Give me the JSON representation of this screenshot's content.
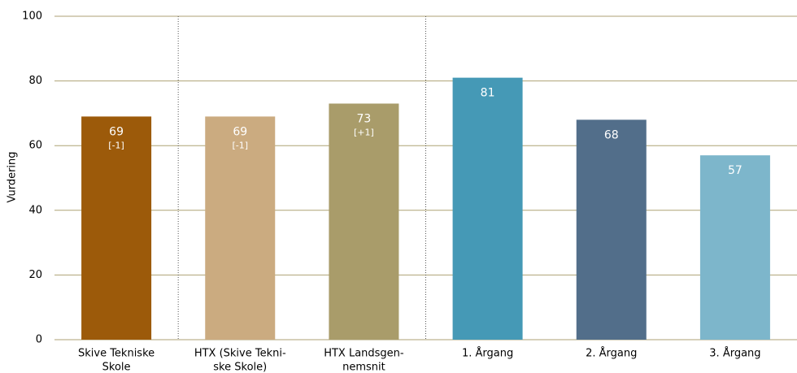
{
  "chart_data": {
    "type": "bar",
    "y_label": "Vurdering",
    "categories": [
      [
        "Skive Tekniske",
        "Skole"
      ],
      [
        "HTX (Skive Tekni-",
        "ske Skole)"
      ],
      [
        "HTX Landsgen-",
        "nemsnit"
      ],
      [
        "1. Årgang"
      ],
      [
        "2. Årgang"
      ],
      [
        "3. Årgang"
      ]
    ],
    "values": [
      69,
      69,
      73,
      81,
      68,
      57
    ],
    "annotations": [
      "[-1]",
      "[-1]",
      "[+1]",
      null,
      null,
      null
    ],
    "colors": [
      "#9c5a0a",
      "#cbab80",
      "#a99c6a",
      "#4599b6",
      "#526e8a",
      "#7db6cb"
    ],
    "ylim": [
      0,
      100
    ],
    "yticks": [
      0,
      20,
      40,
      60,
      80,
      100
    ],
    "grid": true
  }
}
